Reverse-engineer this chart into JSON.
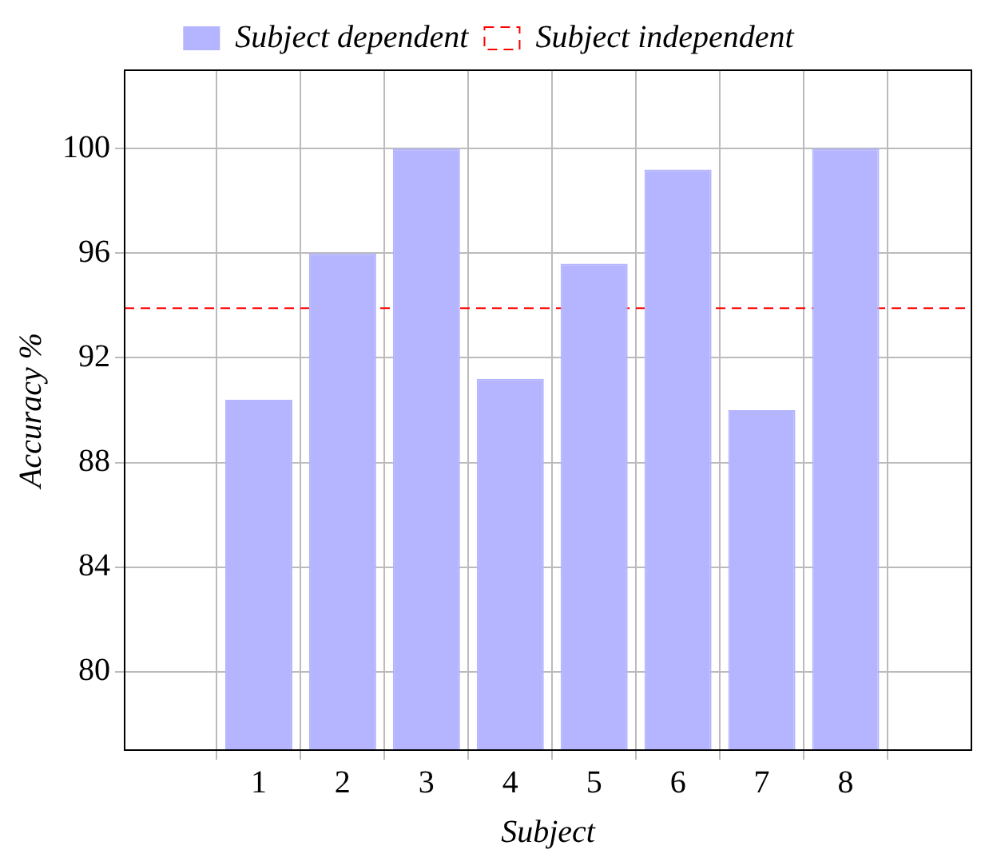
{
  "chart_data": {
    "type": "bar",
    "xlabel": "Subject",
    "ylabel": "Accuracy %",
    "x": [
      1,
      2,
      3,
      4,
      5,
      6,
      7,
      8
    ],
    "xlim": [
      -0.6,
      9.5
    ],
    "xticks": [
      1,
      2,
      3,
      4,
      5,
      6,
      7,
      8
    ],
    "series": [
      {
        "name": "Subject dependent",
        "color": "#b4b4ff",
        "values": [
          90.4,
          96,
          100,
          91.2,
          95.6,
          99.2,
          90,
          100
        ]
      }
    ],
    "ref_lines": [
      {
        "axis": "y",
        "value": 93.9,
        "label": "Subject independent",
        "color": "#ff0000",
        "line_style": "dashed"
      }
    ],
    "ylim": [
      77,
      103
    ],
    "yticks": [
      80,
      84,
      88,
      92,
      96,
      100
    ],
    "grid": true,
    "legend": "top"
  }
}
